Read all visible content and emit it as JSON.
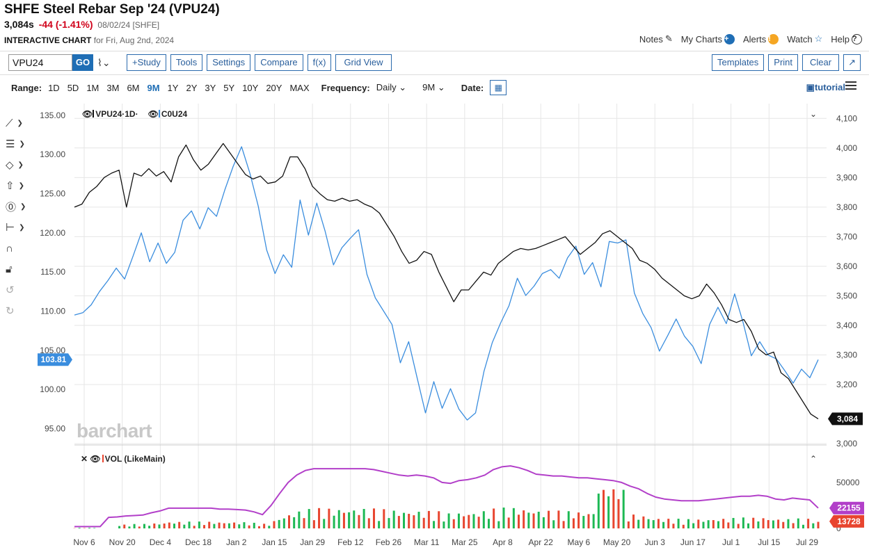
{
  "header": {
    "title": "SHFE Steel Rebar Sep '24 (VPU24)",
    "last": "3,084s",
    "change": "-44 (-1.41%)",
    "meta": "08/02/24 [SHFE]",
    "interactive_label": "INTERACTIVE CHART",
    "interactive_date": "for Fri, Aug 2nd, 2024"
  },
  "toplinks": {
    "notes": "Notes",
    "my_charts": "My Charts",
    "alerts": "Alerts",
    "watch": "Watch",
    "help": "Help"
  },
  "toolbar": {
    "symbol": "VPU24",
    "go": "GO",
    "study": "+Study",
    "tools": "Tools",
    "settings": "Settings",
    "compare": "Compare",
    "fx": "f(x)",
    "grid_view": "Grid View",
    "templates": "Templates",
    "print": "Print",
    "clear": "Clear"
  },
  "range": {
    "label": "Range:",
    "options": [
      "1D",
      "5D",
      "1M",
      "3M",
      "6M",
      "9M",
      "1Y",
      "2Y",
      "3Y",
      "5Y",
      "10Y",
      "20Y",
      "MAX"
    ],
    "selected": "9M",
    "frequency_label": "Frequency:",
    "frequency": "Daily",
    "period": "9M",
    "date_label": "Date:"
  },
  "tutorial": "tutorial",
  "legend": {
    "series1": "VPU24·1D·",
    "series2": "C0U24",
    "volume": "VOL (LikeMain)"
  },
  "watermark": "barchart",
  "colors": {
    "vpu": "#111111",
    "c0u": "#3a8dde",
    "vol_up": "#1db954",
    "vol_down": "#e8452f",
    "avg": "#b23fc9",
    "accent": "#1f6eb5"
  },
  "chart_data": {
    "type": "line",
    "x_ticks": [
      "Nov 6",
      "Nov 20",
      "Dec 4",
      "Dec 18",
      "Jan 2",
      "Jan 15",
      "Jan 29",
      "Feb 12",
      "Feb 26",
      "Mar 11",
      "Mar 25",
      "Apr 8",
      "Apr 22",
      "May 6",
      "May 20",
      "Jun 3",
      "Jun 17",
      "Jul 1",
      "Jul 15",
      "Jul 29"
    ],
    "left_axis": {
      "ticks": [
        "135.00",
        "130.00",
        "125.00",
        "120.00",
        "115.00",
        "110.00",
        "105.00",
        "100.00",
        "95.00"
      ],
      "ylim": [
        93,
        136.5
      ]
    },
    "right_axis": {
      "ticks": [
        "4,100",
        "4,000",
        "3,900",
        "3,800",
        "3,700",
        "3,600",
        "3,500",
        "3,400",
        "3,300",
        "3,200",
        "3,000"
      ],
      "ylim": [
        2998,
        4150
      ]
    },
    "last_labels": {
      "c0u": "103.81",
      "vpu": "3,084"
    },
    "series": [
      {
        "name": "VPU24",
        "axis": "right",
        "values": [
          3800,
          3810,
          3850,
          3870,
          3900,
          3915,
          3925,
          3800,
          3915,
          3905,
          3930,
          3905,
          3920,
          3885,
          3970,
          4010,
          3960,
          3925,
          3945,
          3980,
          4015,
          3980,
          3945,
          3910,
          3895,
          3905,
          3880,
          3885,
          3905,
          3970,
          3970,
          3930,
          3870,
          3845,
          3825,
          3820,
          3830,
          3820,
          3825,
          3810,
          3800,
          3780,
          3740,
          3700,
          3650,
          3610,
          3620,
          3650,
          3640,
          3580,
          3530,
          3480,
          3520,
          3520,
          3550,
          3580,
          3570,
          3610,
          3630,
          3650,
          3660,
          3655,
          3660,
          3670,
          3680,
          3690,
          3700,
          3670,
          3640,
          3660,
          3680,
          3710,
          3720,
          3700,
          3680,
          3660,
          3620,
          3610,
          3590,
          3560,
          3540,
          3520,
          3500,
          3490,
          3500,
          3540,
          3510,
          3470,
          3420,
          3410,
          3420,
          3380,
          3320,
          3300,
          3310,
          3240,
          3220,
          3180,
          3140,
          3100,
          3084
        ]
      },
      {
        "name": "C0U24",
        "axis": "left",
        "values": [
          109.5,
          109.8,
          110.8,
          112.5,
          113.9,
          115.5,
          114.1,
          117,
          120,
          116.3,
          118.7,
          116.1,
          117.5,
          121.6,
          122.8,
          120.5,
          123.2,
          122.1,
          125.5,
          128.5,
          131,
          127.6,
          123.4,
          117.8,
          114.8,
          117.2,
          115.6,
          124.2,
          119.7,
          123.8,
          120.2,
          115.9,
          118.1,
          119.3,
          120.4,
          114.7,
          111.7,
          110,
          108.3,
          103.4,
          106.1,
          101.5,
          97,
          101,
          97.6,
          100.1,
          97.5,
          96.1,
          97,
          102.3,
          106,
          108.5,
          110.7,
          114.2,
          112,
          113.2,
          114.8,
          115.3,
          114.2,
          116.8,
          118.3,
          114.7,
          116.2,
          113.1,
          118.9,
          118.7,
          119.1,
          112.3,
          109.7,
          107.9,
          104.9,
          106.9,
          109,
          106.8,
          105.5,
          103.3,
          108.3,
          110.5,
          108.4,
          112.2,
          108.6,
          104.3,
          106.1,
          104.4,
          103.9,
          102.4,
          100.8,
          102.6,
          101.5,
          103.8
        ]
      },
      {
        "name": "VOL (LikeMain)",
        "axis": "volume",
        "ticks": [
          "50000",
          "0"
        ],
        "last_labels": [
          "22155",
          "13728"
        ],
        "values": [
          2000,
          2000,
          2000,
          2000,
          12000,
          12500,
          13500,
          14000,
          14500,
          17000,
          19000,
          22000,
          22000,
          22000,
          22000,
          22000,
          22000,
          21000,
          21000,
          20500,
          20000,
          18000,
          15000,
          25000,
          38000,
          50000,
          58000,
          63000,
          65000,
          65000,
          65000,
          65000,
          65000,
          65000,
          65000,
          64000,
          62000,
          60000,
          58000,
          57000,
          58000,
          57000,
          55000,
          50000,
          49000,
          52000,
          53000,
          55000,
          58000,
          64000,
          67000,
          68000,
          66000,
          63000,
          59000,
          58000,
          57000,
          57000,
          56000,
          55000,
          55000,
          54000,
          53000,
          52000,
          50000,
          46000,
          43000,
          38000,
          34000,
          32000,
          31000,
          30000,
          30000,
          30000,
          31000,
          32000,
          33000,
          34000,
          35000,
          35000,
          36000,
          35000,
          32000,
          31000,
          33000,
          32000,
          31000,
          22155
        ]
      }
    ]
  }
}
